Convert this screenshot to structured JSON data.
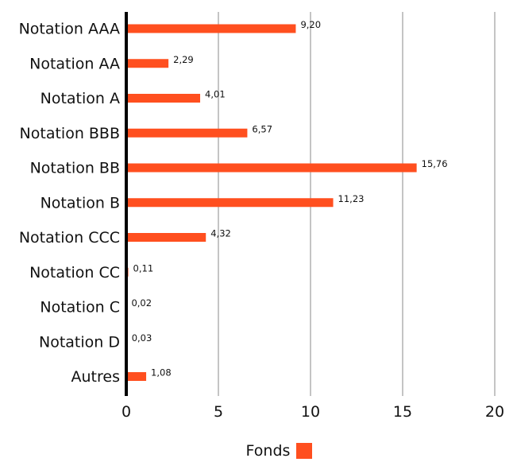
{
  "chart_data": {
    "type": "bar",
    "orientation": "horizontal",
    "categories": [
      "Notation AAA",
      "Notation AA",
      "Notation A",
      "Notation BBB",
      "Notation BB",
      "Notation B",
      "Notation CCC",
      "Notation CC",
      "Notation C",
      "Notation D",
      "Autres"
    ],
    "series": [
      {
        "name": "Fonds",
        "values": [
          9.2,
          2.29,
          4.01,
          6.57,
          15.76,
          11.23,
          4.32,
          0.11,
          0.02,
          0.03,
          1.08
        ],
        "labels": [
          "9,20",
          "2,29",
          "4,01",
          "6,57",
          "15,76",
          "11,23",
          "4,32",
          "0,11",
          "0,02",
          "0,03",
          "1,08"
        ]
      }
    ],
    "xlim": [
      0,
      20
    ],
    "xticks": [
      "0",
      "5",
      "10",
      "15",
      "20"
    ],
    "grid": "vertical",
    "legend_position": "bottom",
    "bar_color": "#ff4f1f"
  },
  "legend": {
    "label": "Fonds"
  }
}
